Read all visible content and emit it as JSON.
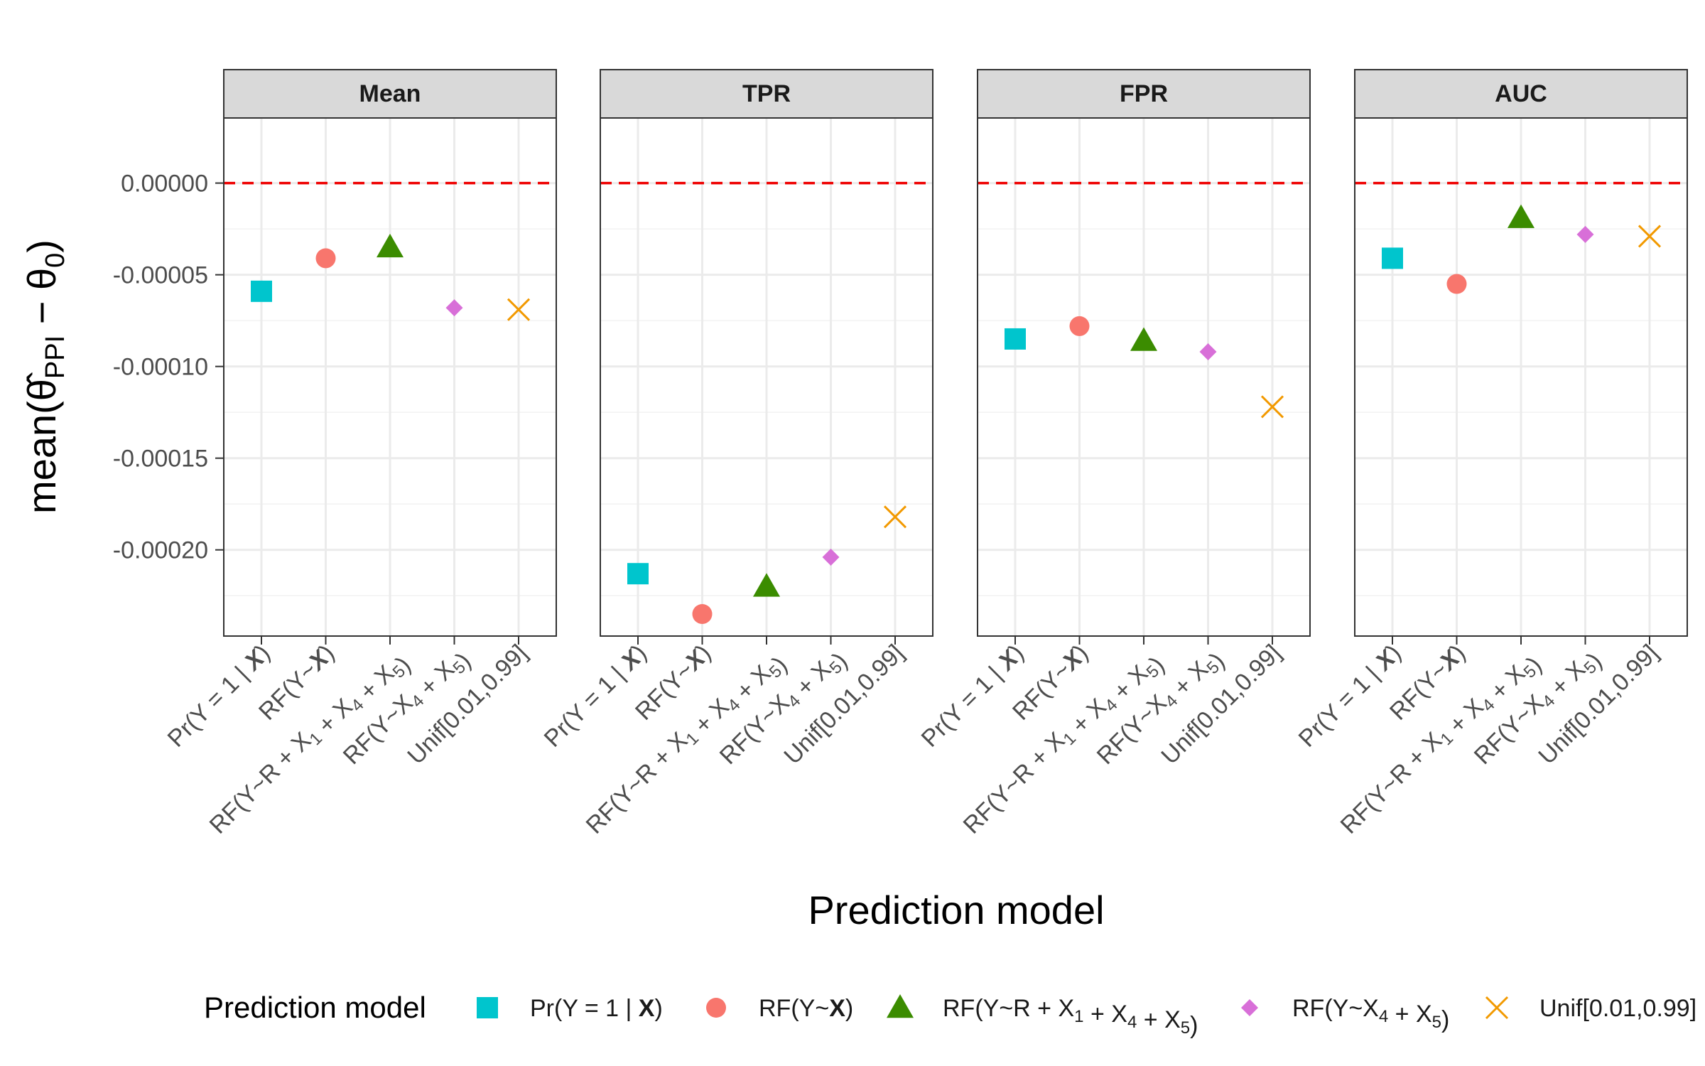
{
  "chart_data": {
    "type": "scatter",
    "facets": [
      "Mean",
      "TPR",
      "FPR",
      "AUC"
    ],
    "categories": [
      "Pr(Y = 1 | X)",
      "RF(Y~X)",
      "RF(Y~R + X1 + X4 + X5)",
      "RF(Y~X4 + X5)",
      "Unif[0.01,0.99]"
    ],
    "series": [
      {
        "name": "Pr(Y = 1 | X)",
        "shape": "square",
        "color": "#00C5CD",
        "values": {
          "Mean": -5.9e-05,
          "TPR": -0.000213,
          "FPR": -8.5e-05,
          "AUC": -4.1e-05
        }
      },
      {
        "name": "RF(Y~X)",
        "shape": "circle",
        "color": "#F8766D",
        "values": {
          "Mean": -4.1e-05,
          "TPR": -0.000235,
          "FPR": -7.8e-05,
          "AUC": -5.5e-05
        }
      },
      {
        "name": "RF(Y~R + X1 + X4 + X5)",
        "shape": "triangle",
        "color": "#3B8C00",
        "values": {
          "Mean": -3.5e-05,
          "TPR": -0.00022,
          "FPR": -8.6e-05,
          "AUC": -1.9e-05
        }
      },
      {
        "name": "RF(Y~X4 + X5)",
        "shape": "diamond",
        "color": "#D86FD8",
        "values": {
          "Mean": -6.8e-05,
          "TPR": -0.000204,
          "FPR": -9.2e-05,
          "AUC": -2.8e-05
        }
      },
      {
        "name": "Unif[0.01,0.99]",
        "shape": "cross",
        "color": "#F29900",
        "values": {
          "Mean": -6.9e-05,
          "TPR": -0.000182,
          "FPR": -0.000122,
          "AUC": -2.9e-05
        }
      }
    ],
    "reference_line": {
      "y": 0,
      "color": "#EE0000",
      "style": "dashed"
    },
    "yticks": [
      0,
      -5e-05,
      -0.0001,
      -0.00015,
      -0.0002
    ],
    "ytick_labels": [
      "0.00000",
      "-0.00005",
      "-0.00010",
      "-0.00015",
      "-0.00020"
    ],
    "ylim": [
      -0.000247,
      3.55e-05
    ],
    "xlabel": "Prediction model",
    "ylabel": "mean(θ̂PPI − θ0)",
    "legend": {
      "title": "Prediction model",
      "position": "bottom"
    },
    "grid": true
  }
}
